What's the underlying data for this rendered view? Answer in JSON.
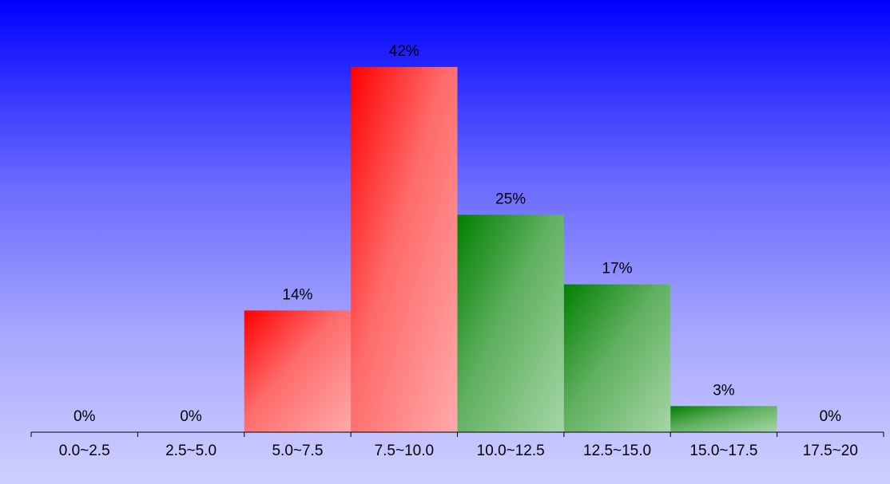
{
  "chart_data": {
    "type": "bar",
    "title": "",
    "xlabel": "",
    "ylabel": "",
    "categories": [
      "0.0~2.5",
      "2.5~5.0",
      "5.0~7.5",
      "7.5~10.0",
      "10.0~12.5",
      "12.5~15.0",
      "15.0~17.5",
      "17.5~20"
    ],
    "values": [
      0,
      0,
      14,
      42,
      25,
      17,
      3,
      0
    ],
    "value_labels": [
      "0%",
      "0%",
      "14%",
      "42%",
      "25%",
      "17%",
      "3%",
      "0%"
    ],
    "unit": "%",
    "ylim": [
      0,
      42
    ],
    "grid": false,
    "legend": "none",
    "bar_colors": [
      "#ff0000",
      "#ff0000",
      "#ff0000",
      "#ff0000",
      "#008000",
      "#008000",
      "#008000",
      "#008000"
    ],
    "background": [
      "#0000ff",
      "#cfcfff"
    ]
  }
}
